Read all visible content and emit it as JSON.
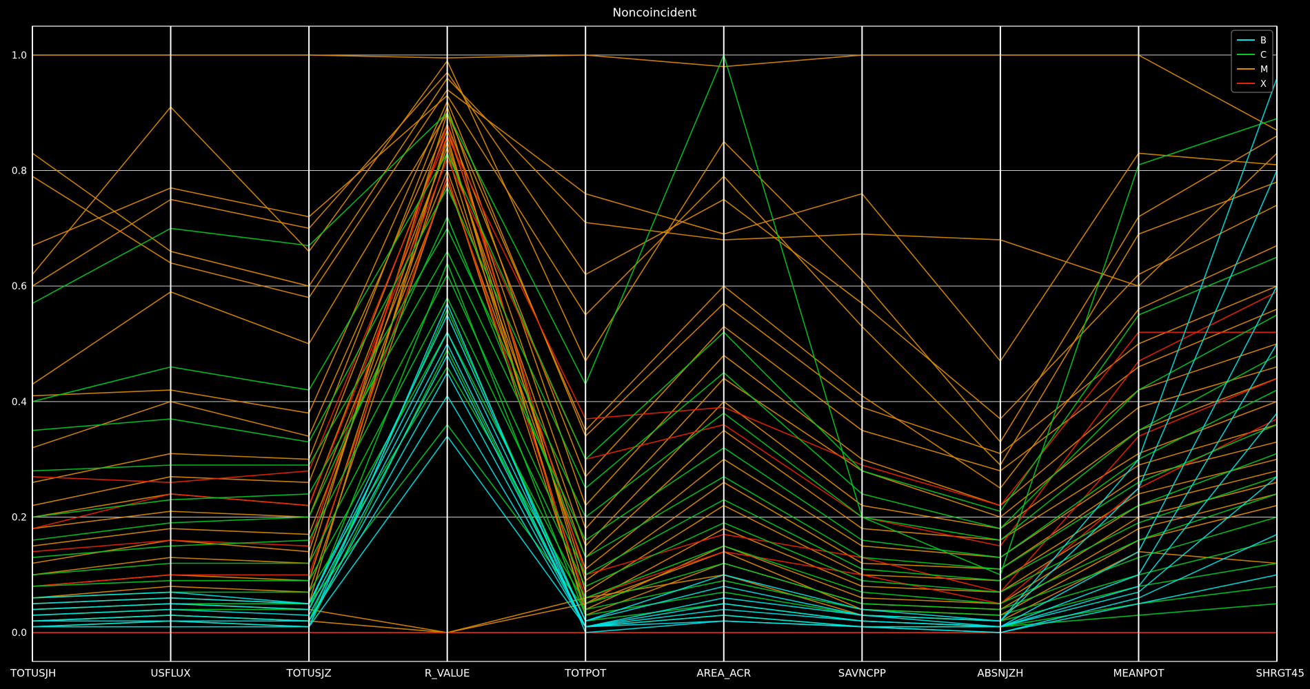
{
  "chart_data": {
    "type": "parallel_coordinates",
    "title": "Noncoincident",
    "axes": [
      "TOTUSJH",
      "USFLUX",
      "TOTUSJZ",
      "R_VALUE",
      "TOTPOT",
      "AREA_ACR",
      "SAVNCPP",
      "ABSNJZH",
      "MEANPOT",
      "SHRGT45"
    ],
    "ylim": [
      -0.05,
      1.05
    ],
    "yticks": [
      "0.0",
      "0.2",
      "0.4",
      "0.6",
      "0.8",
      "1.0"
    ],
    "grid": true,
    "legend_position": "top-right",
    "classes": [
      {
        "name": "B",
        "color": "#00e5e5"
      },
      {
        "name": "C",
        "color": "#00cc22"
      },
      {
        "name": "M",
        "color": "#e08c00"
      },
      {
        "name": "X",
        "color": "#ee2200"
      }
    ],
    "series": [
      {
        "name": "M",
        "values": [
          1.0,
          1.0,
          1.0,
          0.995,
          1.0,
          0.98,
          1.0,
          1.0,
          1.0,
          0.87
        ]
      },
      {
        "name": "M",
        "values": [
          0.83,
          0.66,
          0.6,
          0.96,
          0.71,
          0.68,
          0.69,
          0.68,
          0.6,
          0.83
        ]
      },
      {
        "name": "M",
        "values": [
          0.79,
          0.64,
          0.58,
          0.94,
          0.76,
          0.69,
          0.76,
          0.47,
          0.83,
          0.81
        ]
      },
      {
        "name": "M",
        "values": [
          0.62,
          0.91,
          0.66,
          0.99,
          0.47,
          0.85,
          0.61,
          0.33,
          0.72,
          0.86
        ]
      },
      {
        "name": "M",
        "values": [
          0.67,
          0.77,
          0.72,
          0.93,
          0.55,
          0.79,
          0.53,
          0.29,
          0.69,
          0.78
        ]
      },
      {
        "name": "M",
        "values": [
          0.6,
          0.75,
          0.7,
          0.97,
          0.62,
          0.75,
          0.57,
          0.37,
          0.62,
          0.74
        ]
      },
      {
        "name": "M",
        "values": [
          0.43,
          0.59,
          0.5,
          0.9,
          0.35,
          0.6,
          0.41,
          0.25,
          0.56,
          0.67
        ]
      },
      {
        "name": "M",
        "values": [
          0.41,
          0.42,
          0.38,
          0.92,
          0.34,
          0.57,
          0.39,
          0.31,
          0.5,
          0.6
        ]
      },
      {
        "name": "M",
        "values": [
          0.32,
          0.4,
          0.34,
          0.88,
          0.27,
          0.53,
          0.35,
          0.28,
          0.46,
          0.56
        ]
      },
      {
        "name": "M",
        "values": [
          0.26,
          0.31,
          0.3,
          0.91,
          0.22,
          0.48,
          0.3,
          0.22,
          0.42,
          0.5
        ]
      },
      {
        "name": "M",
        "values": [
          0.22,
          0.27,
          0.26,
          0.87,
          0.18,
          0.44,
          0.28,
          0.2,
          0.39,
          0.46
        ]
      },
      {
        "name": "M",
        "values": [
          0.2,
          0.24,
          0.22,
          0.84,
          0.15,
          0.4,
          0.22,
          0.18,
          0.35,
          0.44
        ]
      },
      {
        "name": "M",
        "values": [
          0.18,
          0.21,
          0.2,
          0.8,
          0.13,
          0.35,
          0.18,
          0.16,
          0.31,
          0.4
        ]
      },
      {
        "name": "M",
        "values": [
          0.15,
          0.18,
          0.17,
          0.78,
          0.11,
          0.3,
          0.15,
          0.13,
          0.29,
          0.36
        ]
      },
      {
        "name": "M",
        "values": [
          0.12,
          0.16,
          0.14,
          0.85,
          0.09,
          0.26,
          0.12,
          0.11,
          0.27,
          0.33
        ]
      },
      {
        "name": "M",
        "values": [
          0.1,
          0.13,
          0.12,
          0.9,
          0.07,
          0.22,
          0.1,
          0.09,
          0.24,
          0.3
        ]
      },
      {
        "name": "M",
        "values": [
          0.08,
          0.1,
          0.09,
          0.83,
          0.05,
          0.18,
          0.08,
          0.07,
          0.22,
          0.28
        ]
      },
      {
        "name": "M",
        "values": [
          0.06,
          0.08,
          0.07,
          0.79,
          0.04,
          0.15,
          0.06,
          0.05,
          0.2,
          0.26
        ]
      },
      {
        "name": "M",
        "values": [
          0.05,
          0.06,
          0.05,
          0.86,
          0.03,
          0.12,
          0.05,
          0.04,
          0.18,
          0.24
        ]
      },
      {
        "name": "M",
        "values": [
          0.04,
          0.05,
          0.04,
          0.0,
          0.05,
          0.14,
          0.04,
          0.03,
          0.16,
          0.22
        ]
      },
      {
        "name": "M",
        "values": [
          0.02,
          0.03,
          0.02,
          0.0,
          0.06,
          0.1,
          0.03,
          0.02,
          0.14,
          0.12
        ]
      },
      {
        "name": "X",
        "values": [
          0.27,
          0.26,
          0.28,
          0.86,
          0.37,
          0.39,
          0.29,
          0.22,
          0.52,
          0.52
        ]
      },
      {
        "name": "X",
        "values": [
          0.18,
          0.24,
          0.22,
          0.82,
          0.3,
          0.36,
          0.2,
          0.15,
          0.47,
          0.59
        ]
      },
      {
        "name": "X",
        "values": [
          0.14,
          0.16,
          0.15,
          0.88,
          0.1,
          0.17,
          0.13,
          0.07,
          0.34,
          0.44
        ]
      },
      {
        "name": "X",
        "values": [
          0.08,
          0.1,
          0.1,
          0.79,
          0.06,
          0.14,
          0.1,
          0.05,
          0.25,
          0.37
        ]
      },
      {
        "name": "X",
        "values": [
          0.0,
          0.0,
          0.0,
          0.0,
          0.0,
          0.0,
          0.0,
          0.0,
          0.0,
          0.0
        ]
      },
      {
        "name": "C",
        "values": [
          0.57,
          0.7,
          0.67,
          0.9,
          0.43,
          1.0,
          0.2,
          0.1,
          0.81,
          0.89
        ]
      },
      {
        "name": "C",
        "values": [
          0.4,
          0.46,
          0.42,
          0.83,
          0.3,
          0.52,
          0.28,
          0.21,
          0.55,
          0.65
        ]
      },
      {
        "name": "C",
        "values": [
          0.35,
          0.37,
          0.33,
          0.77,
          0.25,
          0.45,
          0.24,
          0.18,
          0.42,
          0.55
        ]
      },
      {
        "name": "C",
        "values": [
          0.28,
          0.29,
          0.29,
          0.7,
          0.2,
          0.38,
          0.2,
          0.16,
          0.35,
          0.48
        ]
      },
      {
        "name": "C",
        "values": [
          0.2,
          0.23,
          0.24,
          0.66,
          0.16,
          0.32,
          0.16,
          0.13,
          0.3,
          0.42
        ]
      },
      {
        "name": "C",
        "values": [
          0.16,
          0.19,
          0.2,
          0.72,
          0.13,
          0.27,
          0.13,
          0.11,
          0.26,
          0.36
        ]
      },
      {
        "name": "C",
        "values": [
          0.13,
          0.15,
          0.16,
          0.62,
          0.1,
          0.23,
          0.11,
          0.09,
          0.22,
          0.31
        ]
      },
      {
        "name": "C",
        "values": [
          0.1,
          0.12,
          0.12,
          0.58,
          0.08,
          0.19,
          0.09,
          0.07,
          0.19,
          0.27
        ]
      },
      {
        "name": "C",
        "values": [
          0.08,
          0.09,
          0.09,
          0.52,
          0.06,
          0.15,
          0.07,
          0.05,
          0.16,
          0.24
        ]
      },
      {
        "name": "C",
        "values": [
          0.06,
          0.07,
          0.07,
          0.46,
          0.05,
          0.12,
          0.05,
          0.04,
          0.13,
          0.2
        ]
      },
      {
        "name": "C",
        "values": [
          0.04,
          0.05,
          0.05,
          0.36,
          0.04,
          0.09,
          0.04,
          0.03,
          0.1,
          0.16
        ]
      },
      {
        "name": "C",
        "values": [
          0.03,
          0.04,
          0.04,
          0.64,
          0.03,
          0.07,
          0.03,
          0.02,
          0.08,
          0.12
        ]
      },
      {
        "name": "C",
        "values": [
          0.02,
          0.03,
          0.02,
          0.56,
          0.02,
          0.05,
          0.02,
          0.01,
          0.05,
          0.08
        ]
      },
      {
        "name": "C",
        "values": [
          0.01,
          0.02,
          0.01,
          0.49,
          0.01,
          0.03,
          0.01,
          0.01,
          0.03,
          0.05
        ]
      },
      {
        "name": "B",
        "values": [
          0.06,
          0.07,
          0.05,
          0.55,
          0.02,
          0.1,
          0.04,
          0.02,
          0.3,
          0.96
        ]
      },
      {
        "name": "B",
        "values": [
          0.05,
          0.06,
          0.05,
          0.52,
          0.02,
          0.08,
          0.03,
          0.02,
          0.25,
          0.8
        ]
      },
      {
        "name": "B",
        "values": [
          0.04,
          0.05,
          0.04,
          0.5,
          0.01,
          0.06,
          0.03,
          0.01,
          0.14,
          0.6
        ]
      },
      {
        "name": "B",
        "values": [
          0.03,
          0.04,
          0.03,
          0.48,
          0.01,
          0.05,
          0.02,
          0.01,
          0.1,
          0.5
        ]
      },
      {
        "name": "B",
        "values": [
          0.02,
          0.03,
          0.02,
          0.45,
          0.01,
          0.04,
          0.02,
          0.01,
          0.08,
          0.38
        ]
      },
      {
        "name": "B",
        "values": [
          0.02,
          0.02,
          0.02,
          0.41,
          0.01,
          0.03,
          0.01,
          0.01,
          0.07,
          0.27
        ]
      },
      {
        "name": "B",
        "values": [
          0.01,
          0.02,
          0.01,
          0.34,
          0.01,
          0.02,
          0.01,
          0.0,
          0.06,
          0.17
        ]
      },
      {
        "name": "B",
        "values": [
          0.01,
          0.01,
          0.01,
          0.57,
          0.0,
          0.02,
          0.01,
          0.0,
          0.05,
          0.1
        ]
      }
    ]
  }
}
